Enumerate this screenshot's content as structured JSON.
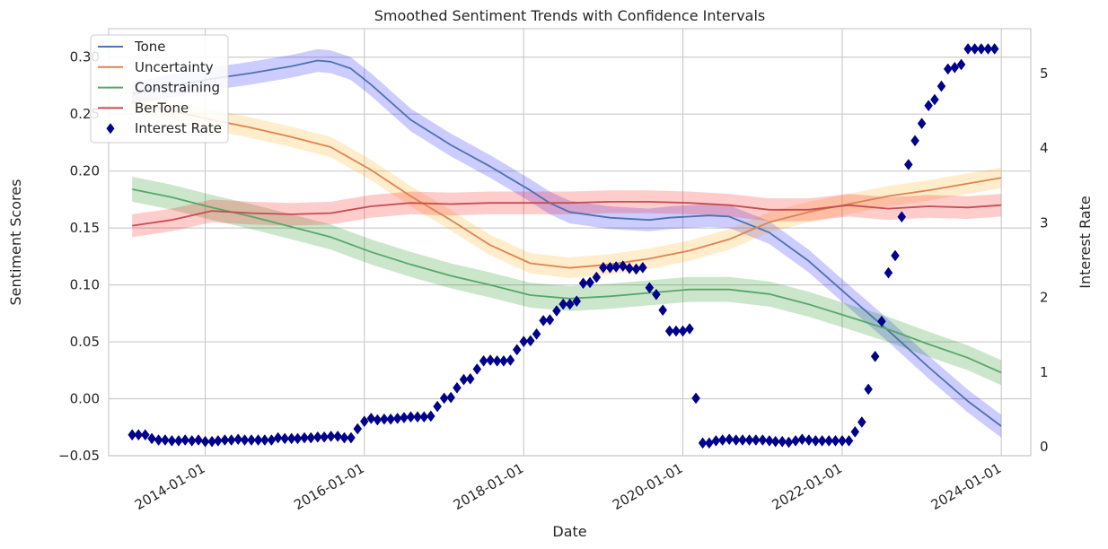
{
  "chart_data": {
    "type": "line",
    "title": "Smoothed Sentiment Trends with Confidence Intervals",
    "xlabel": "Date",
    "ylabel": "Sentiment Scores",
    "y2label": "Interest Rate",
    "x_tick_labels": [
      "2014-01-01",
      "2016-01-01",
      "2018-01-01",
      "2020-01-01",
      "2022-01-01",
      "2024-01-01"
    ],
    "y_tick_labels": [
      "−0.05",
      "0.00",
      "0.05",
      "0.10",
      "0.15",
      "0.20",
      "0.25",
      "0.30"
    ],
    "y2_tick_labels": [
      "0",
      "1",
      "2",
      "3",
      "4",
      "5"
    ],
    "xlim": [
      "2012-10-15",
      "2024-05-15"
    ],
    "ylim": [
      -0.05,
      0.325
    ],
    "y2lim": [
      -0.12,
      5.6
    ],
    "grid": true,
    "legend_position": "top-left",
    "colors": {
      "Tone": "#4c72b0",
      "Uncertainty": "#dd8452",
      "Constraining": "#55a868",
      "BerTone": "#c44e52",
      "Interest Rate": "#00008b",
      "Tone_band": "#0000ff",
      "Uncertainty_band": "#ffa500",
      "Constraining_band": "#008000",
      "BerTone_band": "#ff0000",
      "axis_label_y2": "#00008b"
    },
    "series": [
      {
        "name": "Tone",
        "kind": "line",
        "ci_halfwidth": 0.01,
        "points": [
          [
            "2013-01-31",
            0.268
          ],
          [
            "2013-07-31",
            0.275
          ],
          [
            "2014-01-31",
            0.281
          ],
          [
            "2014-07-31",
            0.286
          ],
          [
            "2015-01-31",
            0.292
          ],
          [
            "2015-05-31",
            0.297
          ],
          [
            "2015-07-31",
            0.296
          ],
          [
            "2015-10-31",
            0.29
          ],
          [
            "2016-01-31",
            0.276
          ],
          [
            "2016-07-31",
            0.245
          ],
          [
            "2017-01-31",
            0.223
          ],
          [
            "2017-07-31",
            0.204
          ],
          [
            "2018-01-31",
            0.183
          ],
          [
            "2018-04-30",
            0.172
          ],
          [
            "2018-07-31",
            0.164
          ],
          [
            "2019-01-31",
            0.159
          ],
          [
            "2019-07-31",
            0.157
          ],
          [
            "2019-10-31",
            0.159
          ],
          [
            "2020-04-30",
            0.161
          ],
          [
            "2020-07-31",
            0.16
          ],
          [
            "2021-01-31",
            0.146
          ],
          [
            "2021-07-31",
            0.121
          ],
          [
            "2022-01-31",
            0.09
          ],
          [
            "2022-07-31",
            0.06
          ],
          [
            "2023-01-31",
            0.028
          ],
          [
            "2023-07-31",
            -0.002
          ],
          [
            "2023-12-31",
            -0.024
          ]
        ]
      },
      {
        "name": "Uncertainty",
        "kind": "line",
        "ci_halfwidth": 0.009,
        "points": [
          [
            "2013-01-31",
            0.261
          ],
          [
            "2013-07-31",
            0.253
          ],
          [
            "2014-01-31",
            0.245
          ],
          [
            "2014-07-31",
            0.238
          ],
          [
            "2015-01-31",
            0.23
          ],
          [
            "2015-07-31",
            0.221
          ],
          [
            "2016-01-31",
            0.201
          ],
          [
            "2016-07-31",
            0.178
          ],
          [
            "2017-01-31",
            0.157
          ],
          [
            "2017-07-31",
            0.135
          ],
          [
            "2018-01-31",
            0.119
          ],
          [
            "2018-07-31",
            0.115
          ],
          [
            "2019-01-31",
            0.118
          ],
          [
            "2019-07-31",
            0.123
          ],
          [
            "2020-01-31",
            0.13
          ],
          [
            "2020-07-31",
            0.14
          ],
          [
            "2021-01-31",
            0.155
          ],
          [
            "2021-07-31",
            0.164
          ],
          [
            "2022-01-31",
            0.171
          ],
          [
            "2022-07-31",
            0.178
          ],
          [
            "2023-01-31",
            0.183
          ],
          [
            "2023-07-31",
            0.189
          ],
          [
            "2023-12-31",
            0.194
          ]
        ]
      },
      {
        "name": "Constraining",
        "kind": "line",
        "ci_halfwidth": 0.011,
        "points": [
          [
            "2013-01-31",
            0.184
          ],
          [
            "2013-07-31",
            0.177
          ],
          [
            "2014-01-31",
            0.168
          ],
          [
            "2014-07-31",
            0.16
          ],
          [
            "2015-01-31",
            0.151
          ],
          [
            "2015-07-31",
            0.142
          ],
          [
            "2016-01-31",
            0.129
          ],
          [
            "2016-07-31",
            0.118
          ],
          [
            "2017-01-31",
            0.108
          ],
          [
            "2017-07-31",
            0.1
          ],
          [
            "2018-01-31",
            0.091
          ],
          [
            "2018-07-31",
            0.088
          ],
          [
            "2019-01-31",
            0.09
          ],
          [
            "2019-07-31",
            0.093
          ],
          [
            "2020-01-31",
            0.096
          ],
          [
            "2020-07-31",
            0.096
          ],
          [
            "2021-01-31",
            0.092
          ],
          [
            "2021-07-31",
            0.083
          ],
          [
            "2022-01-31",
            0.072
          ],
          [
            "2022-07-31",
            0.061
          ],
          [
            "2023-01-31",
            0.048
          ],
          [
            "2023-07-31",
            0.036
          ],
          [
            "2023-12-31",
            0.023
          ]
        ]
      },
      {
        "name": "BerTone",
        "kind": "line",
        "ci_halfwidth": 0.01,
        "points": [
          [
            "2013-01-31",
            0.152
          ],
          [
            "2013-07-31",
            0.157
          ],
          [
            "2014-01-31",
            0.165
          ],
          [
            "2014-07-31",
            0.163
          ],
          [
            "2015-01-31",
            0.162
          ],
          [
            "2015-07-31",
            0.163
          ],
          [
            "2016-01-31",
            0.169
          ],
          [
            "2016-07-31",
            0.172
          ],
          [
            "2017-01-31",
            0.171
          ],
          [
            "2017-07-31",
            0.172
          ],
          [
            "2018-01-31",
            0.172
          ],
          [
            "2018-07-31",
            0.172
          ],
          [
            "2019-01-31",
            0.173
          ],
          [
            "2019-07-31",
            0.173
          ],
          [
            "2020-01-31",
            0.172
          ],
          [
            "2020-07-31",
            0.17
          ],
          [
            "2021-01-31",
            0.166
          ],
          [
            "2021-07-31",
            0.166
          ],
          [
            "2022-01-31",
            0.17
          ],
          [
            "2022-07-31",
            0.167
          ],
          [
            "2023-01-31",
            0.169
          ],
          [
            "2023-07-31",
            0.168
          ],
          [
            "2023-12-31",
            0.17
          ]
        ]
      },
      {
        "name": "Interest Rate",
        "kind": "scatter",
        "axis": "right",
        "marker": "diamond",
        "points": [
          [
            "2013-01-31",
            0.16
          ],
          [
            "2013-03-01",
            0.16
          ],
          [
            "2013-04-01",
            0.16
          ],
          [
            "2013-05-01",
            0.11
          ],
          [
            "2013-06-01",
            0.09
          ],
          [
            "2013-07-01",
            0.09
          ],
          [
            "2013-08-01",
            0.08
          ],
          [
            "2013-09-01",
            0.08
          ],
          [
            "2013-10-01",
            0.09
          ],
          [
            "2013-11-01",
            0.08
          ],
          [
            "2013-12-01",
            0.09
          ],
          [
            "2014-01-01",
            0.07
          ],
          [
            "2014-02-01",
            0.07
          ],
          [
            "2014-03-01",
            0.08
          ],
          [
            "2014-04-01",
            0.09
          ],
          [
            "2014-05-01",
            0.09
          ],
          [
            "2014-06-01",
            0.1
          ],
          [
            "2014-07-01",
            0.09
          ],
          [
            "2014-08-01",
            0.09
          ],
          [
            "2014-09-01",
            0.09
          ],
          [
            "2014-10-01",
            0.09
          ],
          [
            "2014-11-01",
            0.09
          ],
          [
            "2014-12-01",
            0.12
          ],
          [
            "2015-01-01",
            0.11
          ],
          [
            "2015-02-01",
            0.11
          ],
          [
            "2015-03-01",
            0.11
          ],
          [
            "2015-04-01",
            0.12
          ],
          [
            "2015-05-01",
            0.12
          ],
          [
            "2015-06-01",
            0.13
          ],
          [
            "2015-07-01",
            0.13
          ],
          [
            "2015-08-01",
            0.14
          ],
          [
            "2015-09-01",
            0.14
          ],
          [
            "2015-10-01",
            0.12
          ],
          [
            "2015-11-01",
            0.12
          ],
          [
            "2015-12-01",
            0.24
          ],
          [
            "2016-01-01",
            0.34
          ],
          [
            "2016-02-01",
            0.38
          ],
          [
            "2016-03-01",
            0.36
          ],
          [
            "2016-04-01",
            0.37
          ],
          [
            "2016-05-01",
            0.37
          ],
          [
            "2016-06-01",
            0.38
          ],
          [
            "2016-07-01",
            0.39
          ],
          [
            "2016-08-01",
            0.4
          ],
          [
            "2016-09-01",
            0.4
          ],
          [
            "2016-10-01",
            0.4
          ],
          [
            "2016-11-01",
            0.41
          ],
          [
            "2016-12-01",
            0.54
          ],
          [
            "2017-01-01",
            0.65
          ],
          [
            "2017-02-01",
            0.66
          ],
          [
            "2017-03-01",
            0.79
          ],
          [
            "2017-04-01",
            0.9
          ],
          [
            "2017-05-01",
            0.91
          ],
          [
            "2017-06-01",
            1.04
          ],
          [
            "2017-07-01",
            1.15
          ],
          [
            "2017-08-01",
            1.16
          ],
          [
            "2017-09-01",
            1.15
          ],
          [
            "2017-10-01",
            1.15
          ],
          [
            "2017-11-01",
            1.16
          ],
          [
            "2017-12-01",
            1.3
          ],
          [
            "2018-01-01",
            1.41
          ],
          [
            "2018-02-01",
            1.42
          ],
          [
            "2018-03-01",
            1.51
          ],
          [
            "2018-04-01",
            1.69
          ],
          [
            "2018-05-01",
            1.7
          ],
          [
            "2018-06-01",
            1.82
          ],
          [
            "2018-07-01",
            1.91
          ],
          [
            "2018-08-01",
            1.91
          ],
          [
            "2018-09-01",
            1.95
          ],
          [
            "2018-10-01",
            2.19
          ],
          [
            "2018-11-01",
            2.2
          ],
          [
            "2018-12-01",
            2.27
          ],
          [
            "2019-01-01",
            2.4
          ],
          [
            "2019-02-01",
            2.4
          ],
          [
            "2019-03-01",
            2.41
          ],
          [
            "2019-04-01",
            2.42
          ],
          [
            "2019-05-01",
            2.39
          ],
          [
            "2019-06-01",
            2.38
          ],
          [
            "2019-07-01",
            2.4
          ],
          [
            "2019-08-01",
            2.13
          ],
          [
            "2019-09-01",
            2.04
          ],
          [
            "2019-10-01",
            1.83
          ],
          [
            "2019-11-01",
            1.55
          ],
          [
            "2019-12-01",
            1.55
          ],
          [
            "2020-01-01",
            1.55
          ],
          [
            "2020-02-01",
            1.58
          ],
          [
            "2020-03-01",
            0.65
          ],
          [
            "2020-04-01",
            0.05
          ],
          [
            "2020-05-01",
            0.05
          ],
          [
            "2020-06-01",
            0.08
          ],
          [
            "2020-07-01",
            0.09
          ],
          [
            "2020-08-01",
            0.1
          ],
          [
            "2020-09-01",
            0.09
          ],
          [
            "2020-10-01",
            0.09
          ],
          [
            "2020-11-01",
            0.09
          ],
          [
            "2020-12-01",
            0.09
          ],
          [
            "2021-01-01",
            0.09
          ],
          [
            "2021-02-01",
            0.08
          ],
          [
            "2021-03-01",
            0.07
          ],
          [
            "2021-04-01",
            0.07
          ],
          [
            "2021-05-01",
            0.06
          ],
          [
            "2021-06-01",
            0.08
          ],
          [
            "2021-07-01",
            0.1
          ],
          [
            "2021-08-01",
            0.09
          ],
          [
            "2021-09-01",
            0.08
          ],
          [
            "2021-10-01",
            0.08
          ],
          [
            "2021-11-01",
            0.08
          ],
          [
            "2021-12-01",
            0.08
          ],
          [
            "2022-01-01",
            0.08
          ],
          [
            "2022-02-01",
            0.08
          ],
          [
            "2022-03-01",
            0.2
          ],
          [
            "2022-04-01",
            0.33
          ],
          [
            "2022-05-01",
            0.77
          ],
          [
            "2022-06-01",
            1.21
          ],
          [
            "2022-07-01",
            1.68
          ],
          [
            "2022-08-01",
            2.33
          ],
          [
            "2022-09-01",
            2.56
          ],
          [
            "2022-10-01",
            3.08
          ],
          [
            "2022-11-01",
            3.78
          ],
          [
            "2022-12-01",
            4.1
          ],
          [
            "2023-01-01",
            4.33
          ],
          [
            "2023-02-01",
            4.57
          ],
          [
            "2023-03-01",
            4.65
          ],
          [
            "2023-04-01",
            4.83
          ],
          [
            "2023-05-01",
            5.06
          ],
          [
            "2023-06-01",
            5.08
          ],
          [
            "2023-07-01",
            5.12
          ],
          [
            "2023-08-01",
            5.33
          ],
          [
            "2023-09-01",
            5.33
          ],
          [
            "2023-10-01",
            5.33
          ],
          [
            "2023-11-01",
            5.33
          ],
          [
            "2023-12-01",
            5.33
          ]
        ]
      }
    ]
  }
}
